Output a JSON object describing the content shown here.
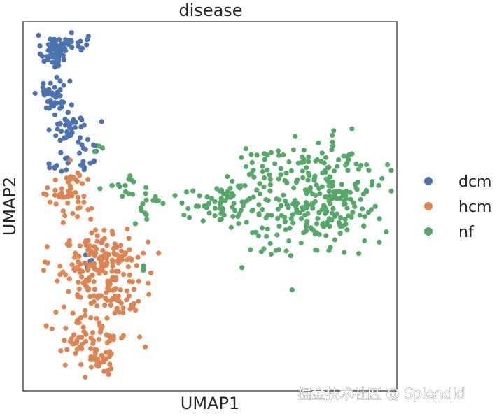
{
  "chart_data": {
    "type": "scatter",
    "title": "disease",
    "xlabel": "UMAP1",
    "ylabel": "UMAP2",
    "xlim": [
      0,
      100
    ],
    "ylim": [
      0,
      100
    ],
    "grid": false,
    "legend_position": "right",
    "series": [
      {
        "name": "dcm",
        "color": "#4c72b0",
        "clusters": [
          {
            "cx": 8,
            "cy": 92,
            "sx": 1.6,
            "sy": 2.2,
            "n": 55
          },
          {
            "cx": 13,
            "cy": 94,
            "sx": 2.2,
            "sy": 1.2,
            "n": 25
          },
          {
            "cx": 8,
            "cy": 80,
            "sx": 2.2,
            "sy": 2.5,
            "n": 45
          },
          {
            "cx": 13,
            "cy": 71,
            "sx": 2.5,
            "sy": 2.5,
            "n": 40
          },
          {
            "cx": 17,
            "cy": 64,
            "sx": 1.8,
            "sy": 2.2,
            "n": 15
          },
          {
            "cx": 9,
            "cy": 61,
            "sx": 1.8,
            "sy": 1.5,
            "n": 10
          },
          {
            "cx": 17,
            "cy": 35,
            "sx": 2.0,
            "sy": 2.0,
            "n": 5
          }
        ]
      },
      {
        "name": "hcm",
        "color": "#dd8452",
        "clusters": [
          {
            "cx": 13,
            "cy": 53,
            "sx": 3.0,
            "sy": 3.5,
            "n": 50
          },
          {
            "cx": 21,
            "cy": 36,
            "sx": 6.0,
            "sy": 4.0,
            "n": 140
          },
          {
            "cx": 24,
            "cy": 26,
            "sx": 5.5,
            "sy": 3.5,
            "n": 70
          },
          {
            "cx": 18,
            "cy": 15,
            "sx": 5.0,
            "sy": 3.5,
            "n": 70
          },
          {
            "cx": 20,
            "cy": 7,
            "sx": 3.0,
            "sy": 2.0,
            "n": 25
          }
        ]
      },
      {
        "name": "nf",
        "color": "#55a868",
        "clusters": [
          {
            "cx": 74,
            "cy": 52,
            "sx": 10.0,
            "sy": 7.5,
            "n": 230
          },
          {
            "cx": 84,
            "cy": 55,
            "sx": 6.0,
            "sy": 6.0,
            "n": 90
          },
          {
            "cx": 53,
            "cy": 51,
            "sx": 4.5,
            "sy": 2.5,
            "n": 50
          },
          {
            "cx": 36,
            "cy": 51,
            "sx": 2.5,
            "sy": 1.0,
            "n": 10
          },
          {
            "cx": 27,
            "cy": 55,
            "sx": 3.5,
            "sy": 2.0,
            "n": 15
          },
          {
            "cx": 31,
            "cy": 47,
            "sx": 1.5,
            "sy": 1.5,
            "n": 6
          },
          {
            "cx": 21,
            "cy": 66,
            "sx": 1.0,
            "sy": 1.0,
            "n": 3
          },
          {
            "cx": 31,
            "cy": 33,
            "sx": 0.8,
            "sy": 0.8,
            "n": 3
          }
        ]
      }
    ]
  },
  "watermark": "掘金技术社区 @ Splendid"
}
